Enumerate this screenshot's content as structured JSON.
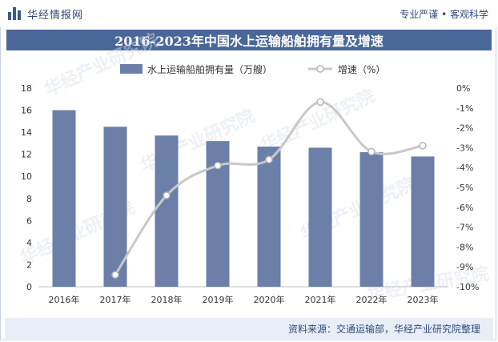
{
  "header": {
    "brand": "华经情报网",
    "slogan": "专业严谨 • 客观科学"
  },
  "chart_title": "2016-2023年中国水上运输船舶拥有量及增速",
  "source": "资料来源：交通运输部，华经产业研究院整理",
  "watermark": "华经产业研究院",
  "colors": {
    "bar": "#6b7fa8",
    "line": "#c8c8c8",
    "title_bg": "#4a6799",
    "brand": "#2f4a78"
  },
  "chart_data": {
    "type": "bar",
    "categories": [
      "2016年",
      "2017年",
      "2018年",
      "2019年",
      "2020年",
      "2021年",
      "2022年",
      "2023年"
    ],
    "series": [
      {
        "name": "水上运输船舶拥有量（万艘）",
        "type": "bar",
        "axis": "left",
        "values": [
          16.0,
          14.5,
          13.7,
          13.2,
          12.7,
          12.6,
          12.2,
          11.8
        ]
      },
      {
        "name": "增速（%）",
        "type": "line",
        "axis": "right",
        "values": [
          null,
          -9.4,
          -5.4,
          -3.9,
          -3.6,
          -0.7,
          -3.2,
          -2.9
        ]
      }
    ],
    "left_axis": {
      "min": 0,
      "max": 18,
      "step": 2,
      "ticks": [
        "0",
        "2",
        "4",
        "6",
        "8",
        "10",
        "12",
        "14",
        "16",
        "18"
      ]
    },
    "right_axis": {
      "min": -10,
      "max": 0,
      "step": 1,
      "ticks": [
        "-10%",
        "-9%",
        "-8%",
        "-7%",
        "-6%",
        "-5%",
        "-4%",
        "-3%",
        "-2%",
        "-1%",
        "0%"
      ]
    },
    "legend_position": "top-center",
    "grid": false
  }
}
